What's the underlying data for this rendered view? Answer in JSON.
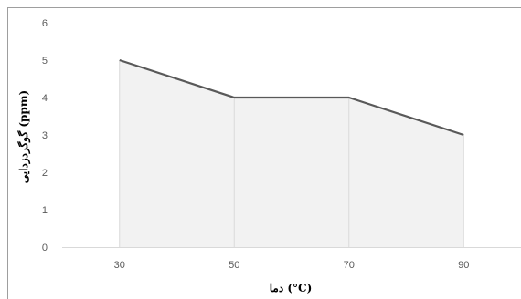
{
  "chart_data": {
    "type": "area",
    "title": "",
    "xlabel": "دما (°C)",
    "ylabel": "گوگردزدایی (ppm)",
    "categories": [
      "30",
      "50",
      "70",
      "90"
    ],
    "series": [
      {
        "values": [
          5,
          4,
          4,
          3
        ]
      }
    ],
    "ylim": [
      0,
      6
    ],
    "yticks": [
      "0",
      "1",
      "2",
      "3",
      "4",
      "5",
      "6"
    ],
    "grid": false,
    "legend": "none",
    "colors": {
      "fill": "#f2f2f2",
      "line": "#595959",
      "drop_lines": "#d9d9d9",
      "axis": "#d9d9d9"
    }
  }
}
